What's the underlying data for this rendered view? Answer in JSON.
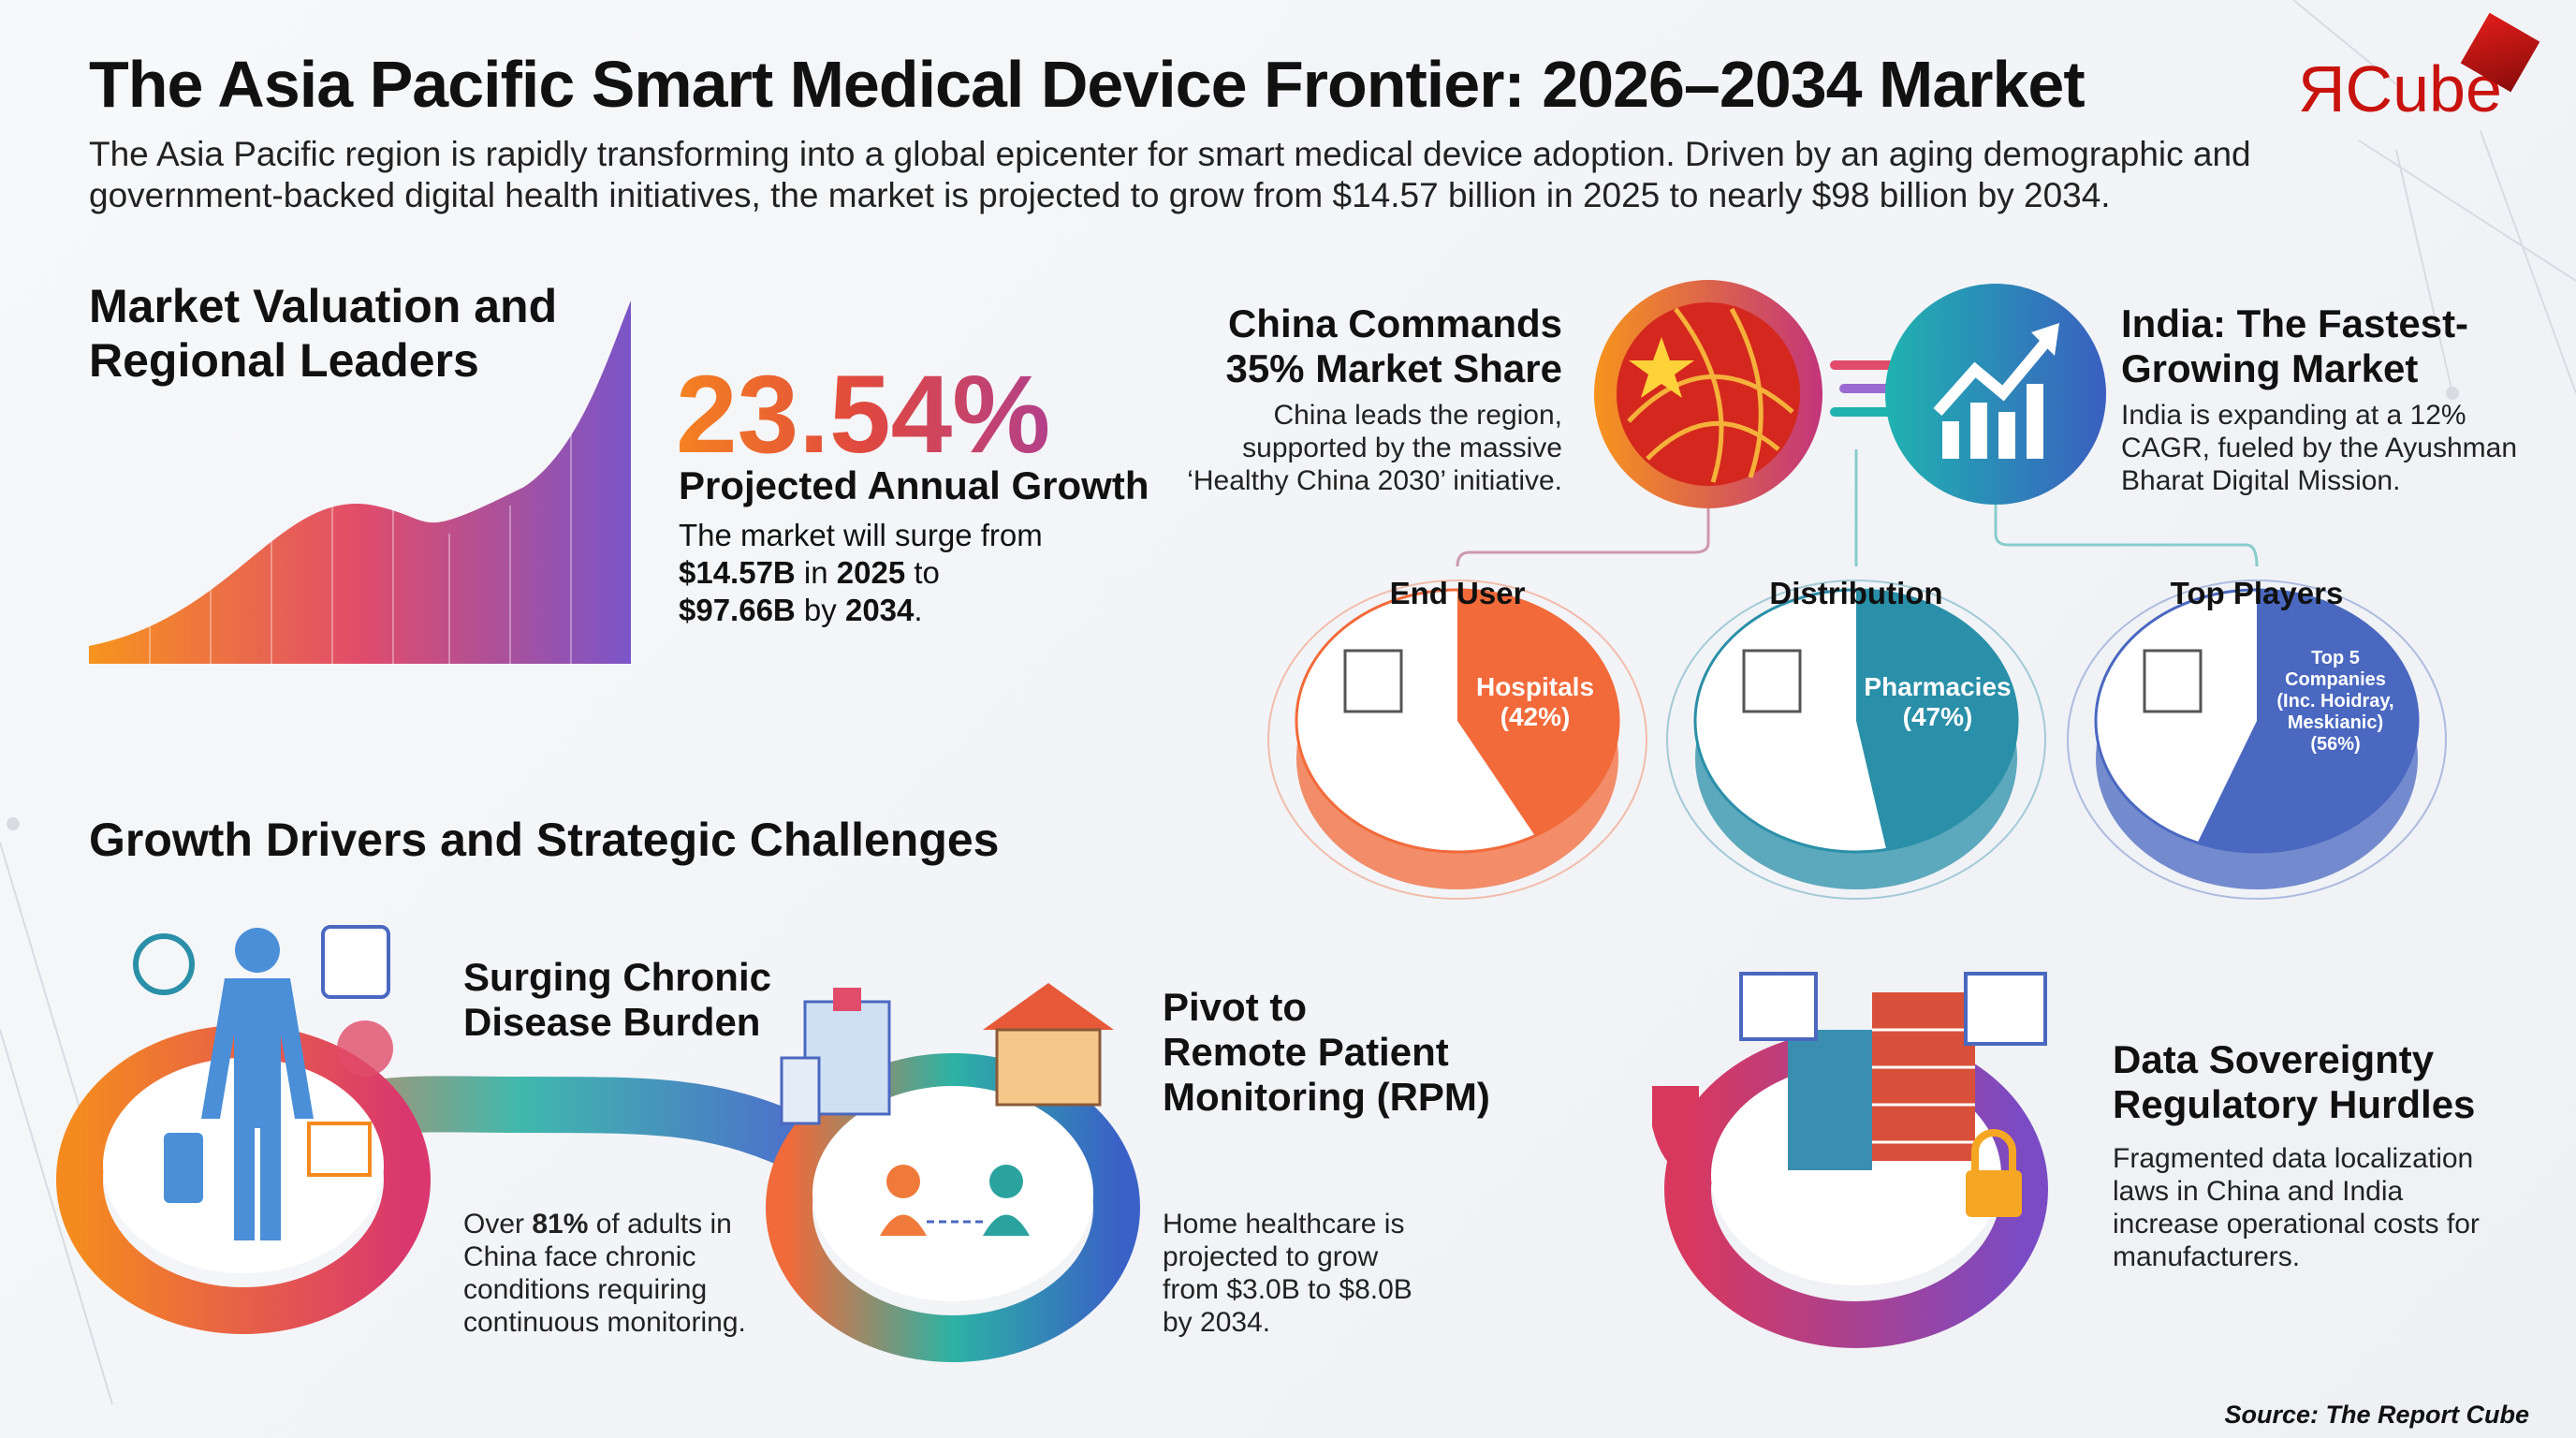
{
  "header": {
    "title": "The Asia Pacific Smart Medical Device Frontier: 2026–2034 Market",
    "subtitle_line1": "The Asia Pacific region is rapidly transforming into a global epicenter for smart medical device adoption. Driven by an aging demographic and",
    "subtitle_line2": "government-backed digital health initiatives, the market is projected to grow from $14.57 billion in 2025 to nearly $98 billion by 2034.",
    "logo_text": "ЯCube"
  },
  "valuation": {
    "heading_line1": "Market Valuation and",
    "heading_line2": "Regional Leaders",
    "growth_rate": "23.54%",
    "growth_label": "Projected Annual Growth",
    "desc_1": "The market will surge from",
    "desc_2a": "$14.57B",
    "desc_2b": " in ",
    "desc_2c": "2025",
    "desc_2d": " to",
    "desc_3a": "$97.66B",
    "desc_3b": " by ",
    "desc_3c": "2034",
    "desc_3d": "."
  },
  "china": {
    "heading_line1": "China Commands",
    "heading_line2": "35% Market Share",
    "text_line1": "China leads the region,",
    "text_line2": "supported by the massive",
    "text_line3": "‘Healthy China 2030’ initiative."
  },
  "india": {
    "heading_line1": "India: The Fastest-",
    "heading_line2": "Growing Market",
    "text_line1": "India is expanding at a 12%",
    "text_line2": "CAGR, fueled by the Ayushman",
    "text_line3": "Bharat Digital Mission."
  },
  "segments": [
    {
      "title": "End User",
      "label_line1": "Hospitals",
      "label_line2": "(42%)",
      "share": 42,
      "color": "#f26a3a"
    },
    {
      "title": "Distribution",
      "label_line1": "Pharmacies",
      "label_line2": "(47%)",
      "share": 47,
      "color": "#2a8fa8"
    },
    {
      "title": "Top Players",
      "label_line1": "Top 5",
      "label_line2": "Companies",
      "label_line3": "(Inc. Hoidray,",
      "label_line4": "Meskianic)",
      "label_line5": "(56%)",
      "share": 56,
      "color": "#4a68c0"
    }
  ],
  "drivers": {
    "heading": "Growth Drivers and Strategic Challenges",
    "chronic": {
      "title_line1": "Surging Chronic",
      "title_line2": "Disease Burden",
      "text_1a": "Over ",
      "text_1b": "81%",
      "text_1c": " of adults in",
      "text_2": "China face chronic",
      "text_3": "conditions requiring",
      "text_4": "continuous monitoring."
    },
    "rpm": {
      "title_line1": "Pivot to",
      "title_line2": "Remote Patient",
      "title_line3": "Monitoring (RPM)",
      "text_1": "Home healthcare is",
      "text_2": "projected to grow",
      "text_3": "from $3.0B to $8.0B",
      "text_4": "by 2034."
    },
    "data": {
      "title_line1": "Data Sovereignty",
      "title_line2": "Regulatory Hurdles",
      "text_1": "Fragmented data localization",
      "text_2": "laws in China and India",
      "text_3": "increase operational costs for",
      "text_4": "manufacturers."
    }
  },
  "source": "Source: The Report Cube"
}
